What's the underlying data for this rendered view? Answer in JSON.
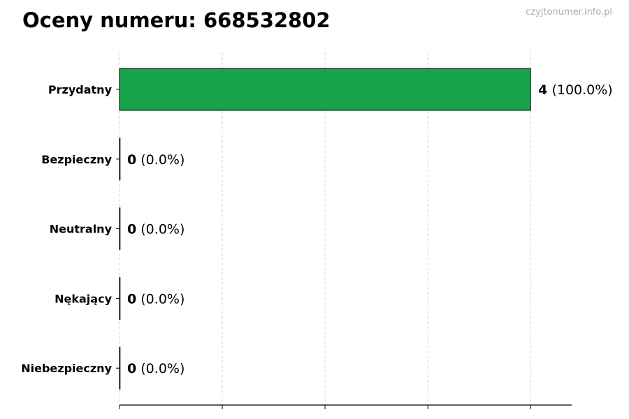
{
  "title": "Oceny numeru: 668532802",
  "watermark": "czyjtonumer.info.pl",
  "colors": {
    "bar": "#17a34a",
    "edge": "#000000",
    "grid": "#cccccc"
  },
  "chart_data": {
    "type": "bar",
    "orientation": "horizontal",
    "title": "Oceny numeru: 668532802",
    "categories": [
      "Przydatny",
      "Bezpieczny",
      "Neutralny",
      "Nękający",
      "Niebezpieczny"
    ],
    "values": [
      4,
      0,
      0,
      0,
      0
    ],
    "percent_labels": [
      "(100.0%)",
      "(0.0%)",
      "(0.0%)",
      "(0.0%)",
      "(0.0%)"
    ],
    "xlim": [
      0,
      4.4
    ],
    "xticks": [
      0,
      1,
      2,
      3,
      4
    ],
    "xtick_labels_shown": false,
    "grid": "x, dashed",
    "xlabel": "",
    "ylabel": ""
  }
}
